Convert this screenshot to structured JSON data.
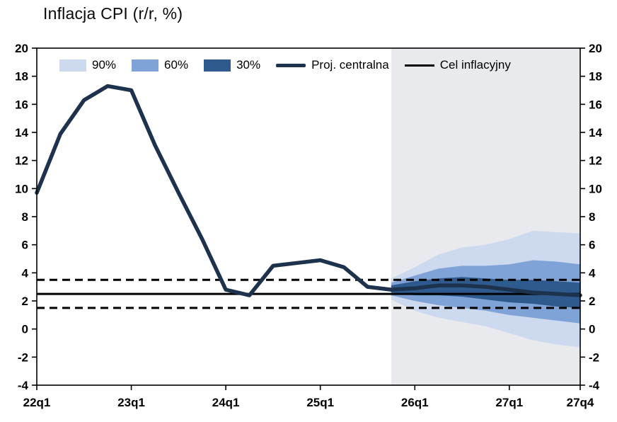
{
  "title": "Inflacja CPI (r/r, %)",
  "colors": {
    "band90": "#ccd9ee",
    "band60": "#7fa3d6",
    "band30": "#2f5a8e",
    "central": "#1d324c",
    "target": "#000000",
    "projection_bg": "#e8eaee"
  },
  "legend": {
    "band90": "90%",
    "band60": "60%",
    "band30": "30%",
    "central": "Proj. centralna",
    "target": "Cel inflacyjny"
  },
  "chart_data": {
    "type": "line",
    "title": "Inflacja CPI (r/r, %)",
    "x": [
      "22q1",
      "22q2",
      "22q3",
      "22q4",
      "23q1",
      "23q2",
      "23q3",
      "23q4",
      "24q1",
      "24q2",
      "24q3",
      "24q4",
      "25q1",
      "25q2",
      "25q3",
      "25q4",
      "26q1",
      "26q2",
      "26q3",
      "26q4",
      "27q1",
      "27q2",
      "27q3",
      "27q4"
    ],
    "x_tick_indices": [
      0,
      4,
      8,
      12,
      16,
      20,
      23
    ],
    "x_tick_labels": [
      "22q1",
      "23q1",
      "24q1",
      "25q1",
      "26q1",
      "27q1",
      "27q4"
    ],
    "ylim": [
      -4,
      20
    ],
    "y_tick_values": [
      20,
      18,
      16,
      14,
      12,
      10,
      8,
      6,
      4,
      2,
      0,
      -2,
      -4
    ],
    "projection_start_index": 15,
    "central": {
      "name": "Proj. centralna",
      "values": [
        9.7,
        13.9,
        16.3,
        17.3,
        17.0,
        13.1,
        9.7,
        6.4,
        2.8,
        2.4,
        4.5,
        4.7,
        4.9,
        4.4,
        3.0,
        2.8,
        2.9,
        3.1,
        3.1,
        3.0,
        2.8,
        2.6,
        2.5,
        2.4
      ]
    },
    "bands": [
      {
        "name": "90%",
        "color": "band90",
        "start_index": 15,
        "upper": [
          3.6,
          4.4,
          5.3,
          5.8,
          6.0,
          6.4,
          7.0,
          6.9,
          6.8
        ],
        "lower": [
          2.1,
          1.3,
          0.8,
          0.5,
          0.2,
          -0.3,
          -0.8,
          -1.1,
          -1.3
        ]
      },
      {
        "name": "60%",
        "color": "band60",
        "start_index": 15,
        "upper": [
          3.3,
          3.8,
          4.3,
          4.5,
          4.5,
          4.6,
          4.9,
          4.8,
          4.6
        ],
        "lower": [
          2.4,
          2.0,
          1.7,
          1.5,
          1.3,
          1.0,
          0.8,
          0.6,
          0.4
        ]
      },
      {
        "name": "30%",
        "color": "band30",
        "start_index": 15,
        "upper": [
          3.1,
          3.4,
          3.6,
          3.7,
          3.6,
          3.5,
          3.5,
          3.4,
          3.3
        ],
        "lower": [
          2.6,
          2.4,
          2.4,
          2.3,
          2.1,
          1.9,
          1.8,
          1.6,
          1.5
        ]
      }
    ],
    "target_line": {
      "name": "Cel inflacyjny",
      "center": 2.5,
      "band_lower": 1.5,
      "band_upper": 3.5
    }
  }
}
